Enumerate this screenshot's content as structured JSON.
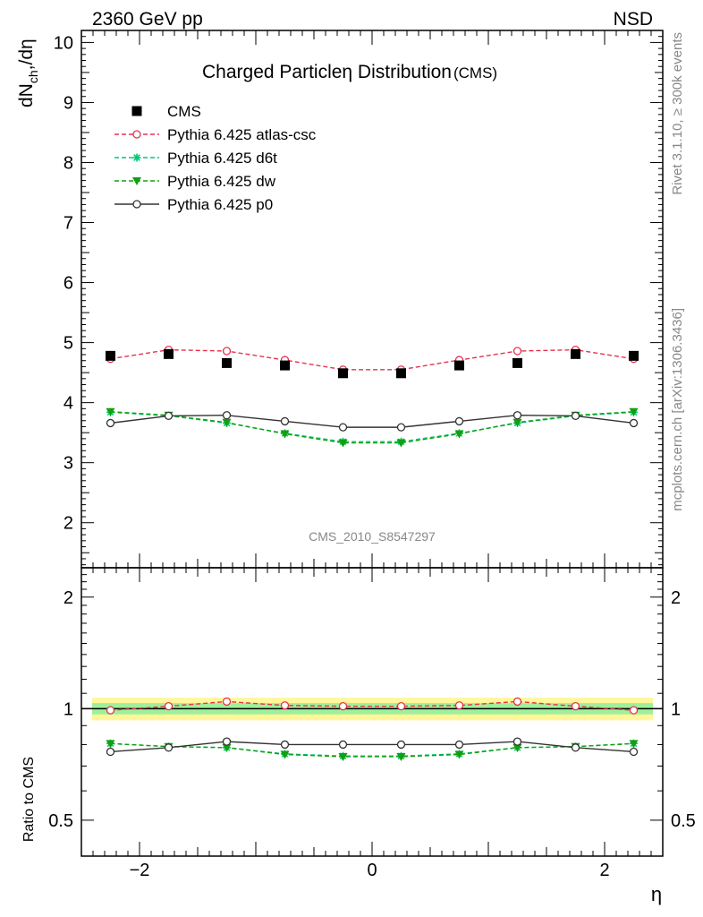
{
  "header": {
    "left": "2360 GeV pp",
    "right": "NSD"
  },
  "side_text": {
    "top": "Rivet 3.1.10, ≥ 300k events",
    "bottom": "mcplots.cern.ch [arXiv:1306.3436]"
  },
  "watermark": "CMS_2010_S8547297",
  "chart_data": {
    "type": "line",
    "title": "Charged Particleη Distribution",
    "title_suffix": "(CMS)",
    "top_ylabel": "dN_ch/dη",
    "bottom_ylabel": "Ratio to CMS",
    "xlabel": "η",
    "xlim": [
      -2.5,
      2.5
    ],
    "top_ylim": [
      1.25,
      10.2
    ],
    "ratio_ylim": [
      0.4,
      2.4
    ],
    "ratio_scale": "log",
    "x_ticks": [
      "−2",
      "0",
      "2"
    ],
    "top_y_ticks": [
      "2",
      "3",
      "4",
      "5",
      "6",
      "7",
      "8",
      "9",
      "10"
    ],
    "ratio_y_ticks": [
      "0.5",
      "1",
      "2"
    ],
    "legend_position": "top-left",
    "x": [
      -2.25,
      -1.75,
      -1.25,
      -0.75,
      -0.25,
      0.25,
      0.75,
      1.25,
      1.75,
      2.25
    ],
    "reference": {
      "name": "CMS",
      "values": [
        4.78,
        4.81,
        4.66,
        4.62,
        4.49,
        4.49,
        4.62,
        4.66,
        4.81,
        4.78
      ],
      "band_inner": 0.035,
      "band_outer": 0.07
    },
    "series": [
      {
        "name": "Pythia 6.425 atlas-csc",
        "color": "#e8314e",
        "dash": "dashed",
        "marker": "open-circle",
        "values": [
          4.73,
          4.88,
          4.86,
          4.71,
          4.55,
          4.55,
          4.71,
          4.86,
          4.88,
          4.73
        ],
        "ratio": [
          0.99,
          1.015,
          1.045,
          1.02,
          1.015,
          1.015,
          1.02,
          1.045,
          1.015,
          0.99
        ]
      },
      {
        "name": "Pythia 6.425 d6t",
        "color": "#00c878",
        "dash": "dashed",
        "marker": "asterisk",
        "values": [
          3.84,
          3.78,
          3.66,
          3.49,
          3.35,
          3.35,
          3.49,
          3.66,
          3.78,
          3.84
        ],
        "ratio": [
          0.805,
          0.79,
          0.785,
          0.755,
          0.745,
          0.745,
          0.755,
          0.785,
          0.79,
          0.805
        ]
      },
      {
        "name": "Pythia 6.425 dw",
        "color": "#10a010",
        "dash": "dashed",
        "marker": "down-triangle",
        "values": [
          3.85,
          3.79,
          3.67,
          3.48,
          3.33,
          3.33,
          3.48,
          3.67,
          3.79,
          3.85
        ],
        "ratio": [
          0.805,
          0.79,
          0.785,
          0.752,
          0.742,
          0.742,
          0.752,
          0.785,
          0.79,
          0.805
        ]
      },
      {
        "name": "Pythia 6.425 p0",
        "color": "#333333",
        "dash": "solid",
        "marker": "open-circle",
        "values": [
          3.66,
          3.78,
          3.79,
          3.69,
          3.59,
          3.59,
          3.69,
          3.79,
          3.78,
          3.66
        ],
        "ratio": [
          0.765,
          0.785,
          0.815,
          0.8,
          0.8,
          0.8,
          0.8,
          0.815,
          0.785,
          0.765
        ]
      }
    ]
  }
}
